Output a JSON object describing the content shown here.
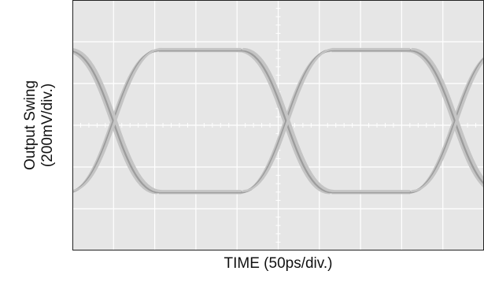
{
  "chart_data": {
    "type": "eye-diagram",
    "xlabel": "TIME (50ps/div.)",
    "ylabel_line1": "Output Swing",
    "ylabel_line2": "(200mV/div.)",
    "x_divisions": 10,
    "y_divisions": 6,
    "grid": true,
    "x_unit_per_div_ps": 50,
    "y_unit_per_div_mV": 200,
    "crossing_points_div": [
      1.0,
      5.2,
      9.3
    ],
    "high_level_div": 1.8,
    "low_level_div": -1.6,
    "colors": {
      "screen_background": "#e6e6e6",
      "grid": "#ffffff",
      "graticule_ticks": "#ffffff",
      "trace": "#9c9c9c",
      "trace_highlight": "#c4c4c4",
      "frame": "#222222"
    }
  }
}
